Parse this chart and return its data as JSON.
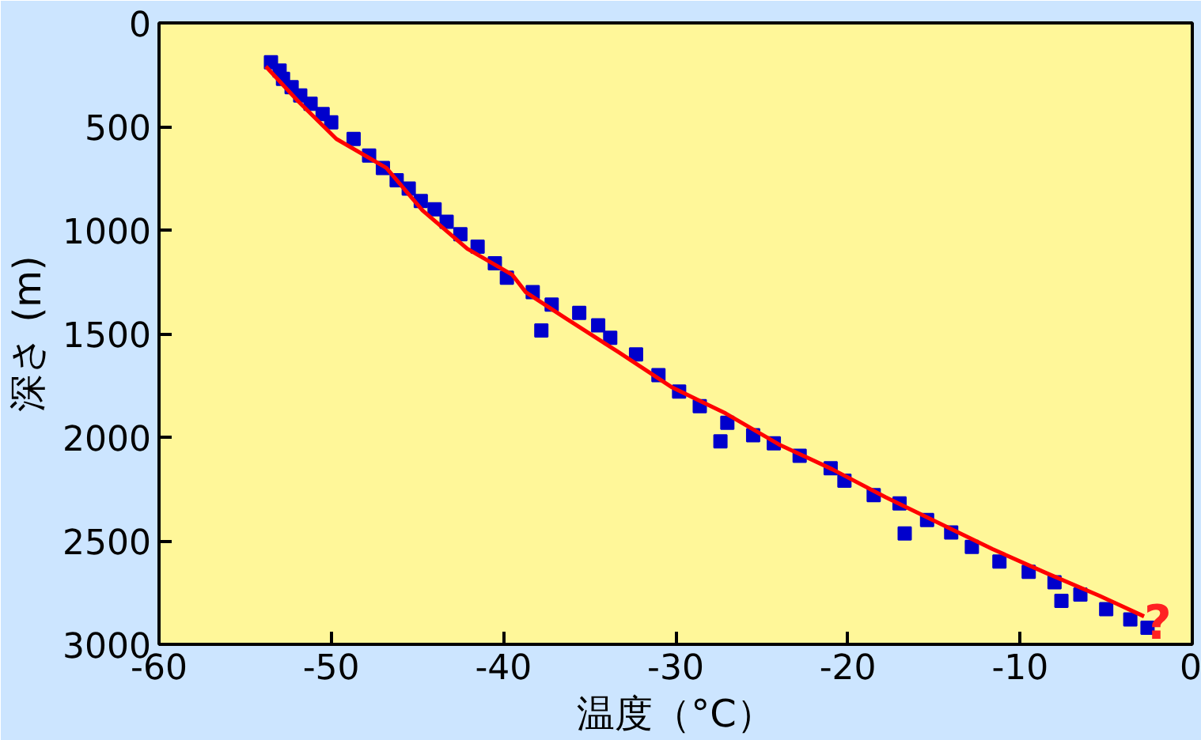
{
  "chart_data": {
    "type": "scatter",
    "xlabel": "温度（°C）",
    "ylabel": "深さ (m)",
    "xlim": [
      -60,
      0
    ],
    "ylim": [
      3000,
      0
    ],
    "xticks": [
      -60,
      -50,
      -40,
      -30,
      -20,
      -10,
      0
    ],
    "yticks": [
      0,
      500,
      1000,
      1500,
      2000,
      2500,
      3000
    ],
    "grid": false,
    "series": [
      {
        "color": "#0000cc",
        "marker": "square",
        "x": [
          -53.5,
          -53.0,
          -52.8,
          -52.3,
          -51.8,
          -51.2,
          -50.5,
          -50.0,
          -48.7,
          -47.8,
          -47.0,
          -46.2,
          -45.5,
          -44.8,
          -44.0,
          -43.3,
          -42.5,
          -41.5,
          -40.5,
          -39.8,
          -38.3,
          -37.2,
          -35.6,
          -34.5,
          -33.8,
          -32.3,
          -31.0,
          -29.8,
          -28.6,
          -27.0,
          -25.5,
          -24.3,
          -22.8,
          -21.0,
          -20.2,
          -18.5,
          -17.0,
          -15.4,
          -14.0,
          -12.8,
          -11.2,
          -9.5,
          -8.0,
          -6.5,
          -5.0,
          -3.6,
          -2.6,
          -37.8,
          -27.4,
          -16.7,
          -7.6
        ],
        "values": [
          190,
          230,
          270,
          310,
          350,
          390,
          440,
          480,
          560,
          640,
          700,
          760,
          800,
          860,
          900,
          960,
          1020,
          1080,
          1160,
          1230,
          1300,
          1360,
          1400,
          1460,
          1520,
          1600,
          1700,
          1780,
          1850,
          1930,
          1990,
          2030,
          2090,
          2150,
          2210,
          2280,
          2320,
          2400,
          2460,
          2530,
          2600,
          2650,
          2700,
          2760,
          2830,
          2880,
          2920,
          1485,
          2020,
          2465,
          2790
        ]
      },
      {
        "type": "line",
        "marker": "none",
        "color": "#ff0000",
        "x": [
          -53.8,
          -51.9,
          -49.7,
          -46.8,
          -44.7,
          -42.1,
          -39.5,
          -38.7,
          -36.4,
          -33.3,
          -30.2,
          -27.1,
          -24.0,
          -20.9,
          -17.8,
          -14.7,
          -11.6,
          -8.5,
          -5.4,
          -2.8
        ],
        "values": [
          210,
          380,
          560,
          700,
          905,
          1090,
          1215,
          1300,
          1425,
          1590,
          1760,
          1885,
          2035,
          2155,
          2290,
          2415,
          2540,
          2655,
          2765,
          2865
        ]
      }
    ],
    "annotations": [
      {
        "text": "?",
        "x": -2.0,
        "y": 2900
      }
    ]
  }
}
